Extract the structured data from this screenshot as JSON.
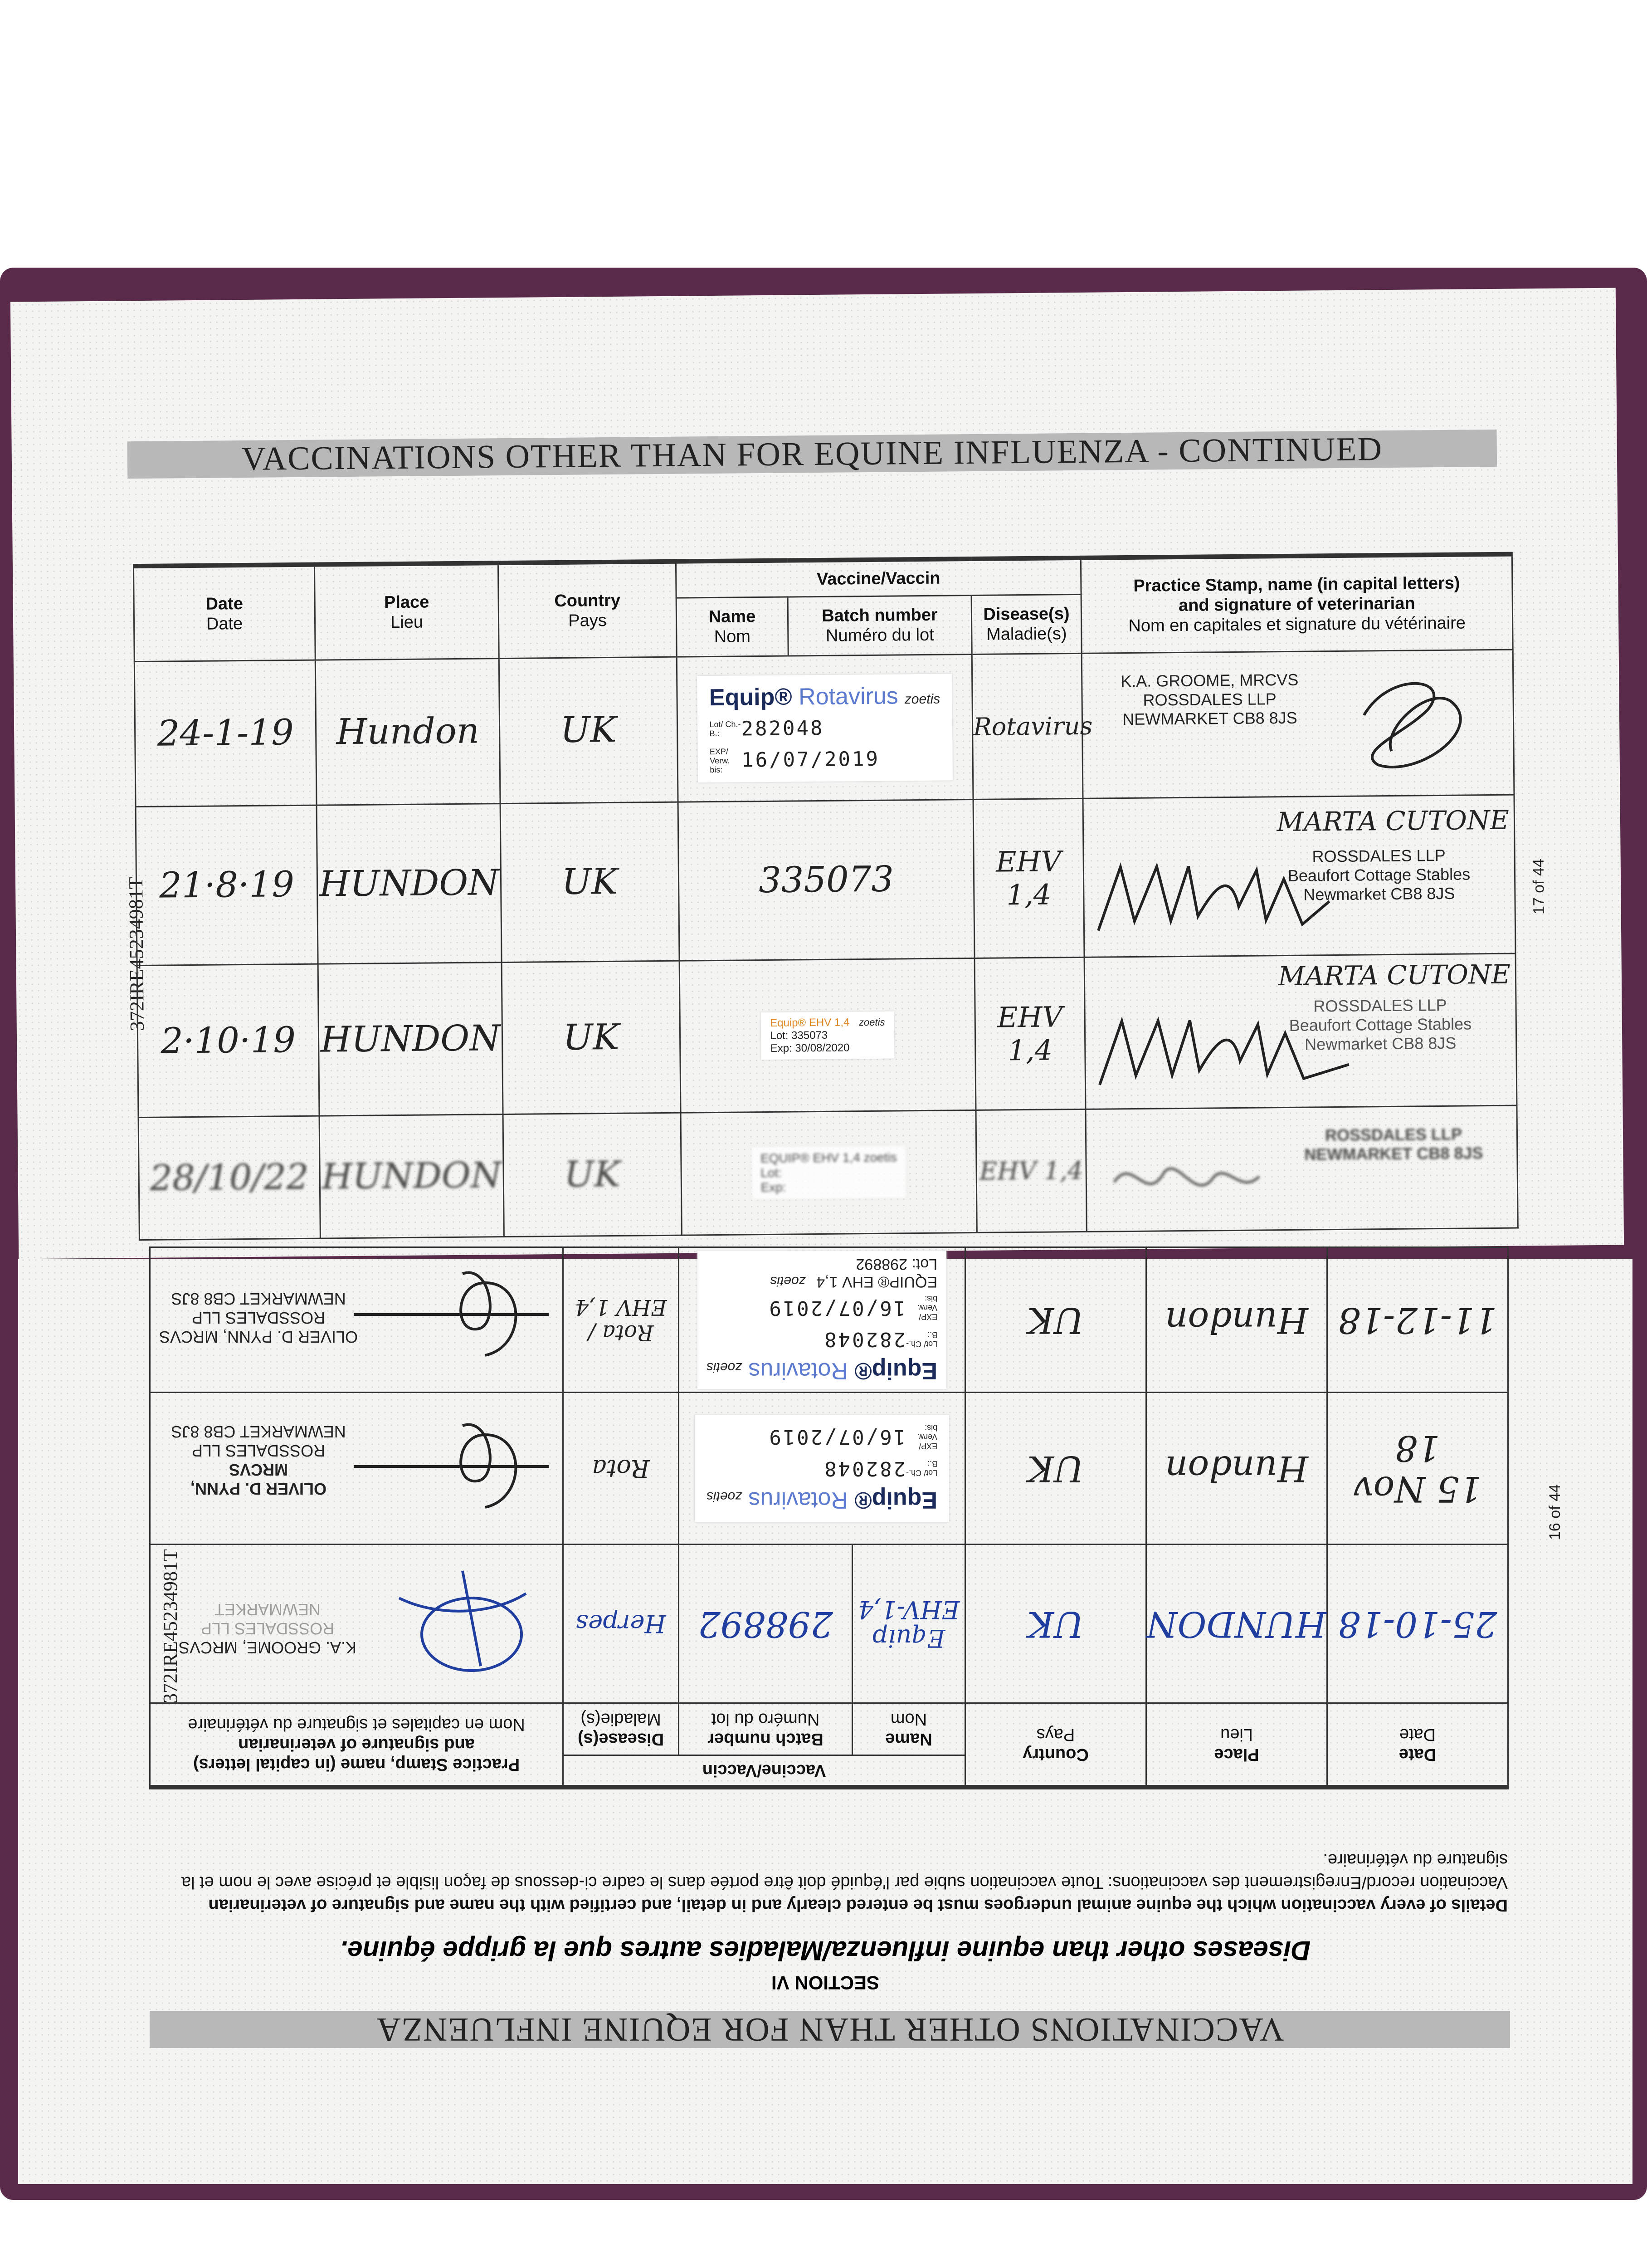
{
  "top_page": {
    "title": "VACCINATIONS OTHER THAN FOR EQUINE INFLUENZA - CONTINUED",
    "side_id": "372IRE45234981T",
    "page_number": "17 of 44",
    "headers": {
      "date": "Date",
      "date_fr": "Date",
      "place": "Place",
      "place_fr": "Lieu",
      "country": "Country",
      "country_fr": "Pays",
      "vaccine": "Vaccine/Vaccin",
      "name": "Name",
      "name_fr": "Nom",
      "batch": "Batch number",
      "batch_fr": "Numéro du lot",
      "disease": "Disease(s)",
      "disease_fr": "Maladie(s)",
      "stamp": "Practice Stamp, name (in capital letters)",
      "stamp2": "and signature of veterinarian",
      "stamp_fr": "Nom en capitales et signature du vétérinaire"
    },
    "rows": [
      {
        "date": "24-1-19",
        "place": "Hundon",
        "country": "UK",
        "label": {
          "brand": "Equip®",
          "product": "Rotavirus",
          "maker": "zoetis",
          "lot_label": "Lot/ Ch.-B.:",
          "lot": "282048",
          "exp_label": "EXP/ Verw. bis:",
          "exp": "16/07/2019"
        },
        "disease": "Rotavirus",
        "stamp": [
          "K.A. GROOME, MRCVS",
          "ROSSDALES LLP",
          "NEWMARKET CB8 8JS"
        ]
      },
      {
        "date": "21·8·19",
        "place": "HUNDON",
        "country": "UK",
        "batch": "335073",
        "disease": "EHV 1,4",
        "stamp": [
          "MARTA CUTONE",
          "ROSSDALES LLP",
          "Beaufort Cottage Stables",
          "Newmarket CB8 8JS"
        ]
      },
      {
        "date": "2·10·19",
        "place": "HUNDON",
        "country": "UK",
        "label": {
          "brand": "Equip® EHV 1,4",
          "maker": "zoetis",
          "lot_label": "Lot:",
          "lot": "335073",
          "exp_label": "Exp:",
          "exp": "30/08/2020"
        },
        "disease": "EHV 1,4",
        "stamp": [
          "MARTA CUTONE",
          "ROSSDALES LLP",
          "Beaufort Cottage Stables",
          "Newmarket CB8 8JS"
        ]
      },
      {
        "date": "28/10/22",
        "place": "HUNDON",
        "country": "UK",
        "label": {
          "brand": "EQUIP® EHV 1,4",
          "maker": "zoetis",
          "lot_label": "Lot:",
          "exp_label": "Exp:"
        },
        "disease": "EHV 1,4",
        "stamp": [
          "ROSSDALES LLP",
          "NEWMARKET CB8 8JS"
        ]
      }
    ]
  },
  "bottom_page": {
    "title": "VACCINATIONS OTHER THAN FOR EQUINE INFLUENZA",
    "section": "SECTION VI",
    "subtitle": "Diseases other than equine influenza/Maladies autres que la grippe équine.",
    "desc1": "Details of every vaccination which the equine animal undergoes must be entered clearly and in detail, and certified with the name and signature of veterinarian",
    "desc2": "Vaccination record/Enregistrement des vaccinations: Toute vaccination subie par l'équidé doit être portée dans le cadre ci-dessous de façon lisible et précise avec le nom et la signature du vétérinaire.",
    "side_id": "372IRE45234981T",
    "page_number": "16 of 44",
    "rows": [
      {
        "date": "25-10-18",
        "place": "HUNDON",
        "country": "UK",
        "name": "Equip EHV-1,4",
        "batch": "298892",
        "disease": "Herpes",
        "stamp": [
          "K.A. GROOME, MRCVS",
          "ROSSDALES LLP",
          "NEWMARKET"
        ]
      },
      {
        "date": "15 Nov 18",
        "place": "Hundon",
        "country": "UK",
        "label": {
          "brand": "Equip®",
          "product": "Rotavirus",
          "maker": "zoetis",
          "lot_label": "Lot/ Ch.-B.:",
          "lot": "282048",
          "exp_label": "EXP/ Verw. bis:",
          "exp": "16/07/2019"
        },
        "disease": "Rota",
        "stamp": [
          "OLIVER D. PYNN, MRCVS",
          "ROSSDALES LLP",
          "NEWMARKET CB8 8JS"
        ]
      },
      {
        "date": "11-12-18",
        "place": "Hundon",
        "country": "UK",
        "label": {
          "brand": "Equip®",
          "product": "Rotavirus",
          "maker": "zoetis",
          "lot_label": "Lot/ Ch.-B.:",
          "lot": "282048",
          "exp_label": "EXP/ Verw. bis:",
          "exp": "16/07/2019"
        },
        "label2": {
          "brand": "EQUIP® EHV 1,4",
          "maker": "zoetis",
          "lot_label": "Lot:",
          "lot": "298892"
        },
        "disease": "Rota / EHV 1,4",
        "stamp": [
          "OLIVER D. PYNN, MRCVS",
          "ROSSDALES LLP",
          "NEWMARKET CB8 8JS"
        ]
      }
    ]
  },
  "colors": {
    "cover": "#5a2a4a",
    "title_bar": "#b8b8b8",
    "blue_ink": "#1f3ea0",
    "rotavirus_text": "#5b7ad0"
  }
}
